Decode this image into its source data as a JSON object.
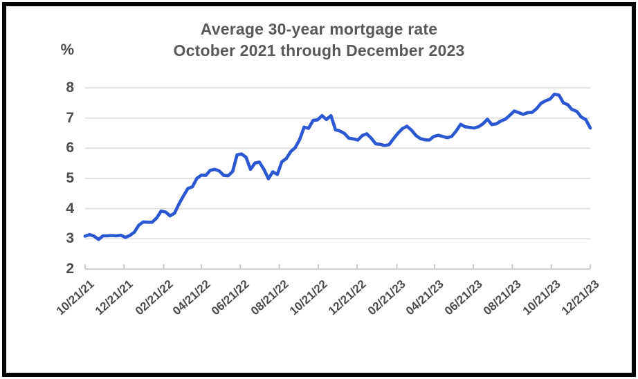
{
  "frame": {
    "border_color": "#060606",
    "background_color": "#ffffff"
  },
  "chart_data": {
    "type": "line",
    "title_lines": [
      "Average 30-year mortgage rate",
      "October 2021 through December 2023"
    ],
    "ylabel": "%",
    "xlabel": "",
    "ylim": [
      2,
      8
    ],
    "grid": true,
    "legend_position": "none",
    "y_ticks": [
      8,
      7,
      6,
      5,
      4,
      3,
      2
    ],
    "x_tick_labels": [
      "10/21/21",
      "12/21/21",
      "02/21/22",
      "04/21/22",
      "06/21/22",
      "08/21/22",
      "10/21/22",
      "12/21/22",
      "02/21/23",
      "04/21/23",
      "06/21/23",
      "08/21/23",
      "10/21/23",
      "12/21/23"
    ],
    "colors": {
      "line": "#2b57d2",
      "gridline": "#dadada",
      "axis": "#c2c2c2",
      "text": "#58585b"
    },
    "series": [
      {
        "name": "Average 30-year mortgage rate (weekly, %)",
        "color": "#2b57d2",
        "dates": [
          "10/21/21",
          "10/28/21",
          "11/04/21",
          "11/11/21",
          "11/18/21",
          "11/24/21",
          "12/02/21",
          "12/09/21",
          "12/16/21",
          "12/23/21",
          "12/30/21",
          "01/06/22",
          "01/13/22",
          "01/20/22",
          "01/27/22",
          "02/03/22",
          "02/10/22",
          "02/17/22",
          "02/24/22",
          "03/03/22",
          "03/10/22",
          "03/17/22",
          "03/24/22",
          "03/31/22",
          "04/07/22",
          "04/14/22",
          "04/21/22",
          "04/28/22",
          "05/05/22",
          "05/12/22",
          "05/19/22",
          "05/26/22",
          "06/02/22",
          "06/09/22",
          "06/16/22",
          "06/23/22",
          "06/30/22",
          "07/07/22",
          "07/14/22",
          "07/21/22",
          "07/28/22",
          "08/04/22",
          "08/11/22",
          "08/18/22",
          "08/25/22",
          "09/01/22",
          "09/08/22",
          "09/15/22",
          "09/22/22",
          "09/29/22",
          "10/06/22",
          "10/13/22",
          "10/20/22",
          "10/27/22",
          "11/03/22",
          "11/10/22",
          "11/17/22",
          "11/23/22",
          "12/01/22",
          "12/08/22",
          "12/15/22",
          "12/22/22",
          "12/29/22",
          "01/05/23",
          "01/12/23",
          "01/19/23",
          "01/26/23",
          "02/02/23",
          "02/09/23",
          "02/16/23",
          "02/23/23",
          "03/02/23",
          "03/09/23",
          "03/16/23",
          "03/23/23",
          "03/30/23",
          "04/06/23",
          "04/13/23",
          "04/20/23",
          "04/27/23",
          "05/04/23",
          "05/11/23",
          "05/18/23",
          "05/25/23",
          "06/01/23",
          "06/08/23",
          "06/15/23",
          "06/22/23",
          "06/29/23",
          "07/06/23",
          "07/13/23",
          "07/20/23",
          "07/27/23",
          "08/03/23",
          "08/10/23",
          "08/17/23",
          "08/24/23",
          "08/31/23",
          "09/07/23",
          "09/14/23",
          "09/21/23",
          "09/28/23",
          "10/05/23",
          "10/12/23",
          "10/19/23",
          "10/26/23",
          "11/02/23",
          "11/09/23",
          "11/16/23",
          "11/22/23",
          "11/30/23",
          "12/07/23",
          "12/14/23",
          "12/21/23"
        ],
        "values": [
          3.09,
          3.14,
          3.09,
          2.98,
          3.1,
          3.1,
          3.11,
          3.1,
          3.12,
          3.05,
          3.11,
          3.22,
          3.45,
          3.56,
          3.55,
          3.55,
          3.69,
          3.92,
          3.89,
          3.76,
          3.85,
          4.16,
          4.42,
          4.67,
          4.72,
          5.0,
          5.11,
          5.1,
          5.27,
          5.3,
          5.25,
          5.1,
          5.09,
          5.23,
          5.78,
          5.81,
          5.7,
          5.3,
          5.51,
          5.54,
          5.3,
          4.99,
          5.22,
          5.13,
          5.55,
          5.66,
          5.89,
          6.02,
          6.29,
          6.7,
          6.66,
          6.92,
          6.94,
          7.08,
          6.95,
          7.08,
          6.61,
          6.58,
          6.49,
          6.33,
          6.31,
          6.27,
          6.42,
          6.48,
          6.33,
          6.15,
          6.13,
          6.09,
          6.12,
          6.32,
          6.5,
          6.65,
          6.73,
          6.6,
          6.42,
          6.32,
          6.28,
          6.27,
          6.39,
          6.43,
          6.39,
          6.35,
          6.39,
          6.57,
          6.79,
          6.71,
          6.69,
          6.67,
          6.71,
          6.81,
          6.96,
          6.78,
          6.81,
          6.9,
          6.96,
          7.09,
          7.23,
          7.18,
          7.12,
          7.18,
          7.19,
          7.31,
          7.49,
          7.57,
          7.63,
          7.79,
          7.76,
          7.5,
          7.44,
          7.29,
          7.22,
          7.03,
          6.95,
          6.67
        ]
      }
    ]
  }
}
